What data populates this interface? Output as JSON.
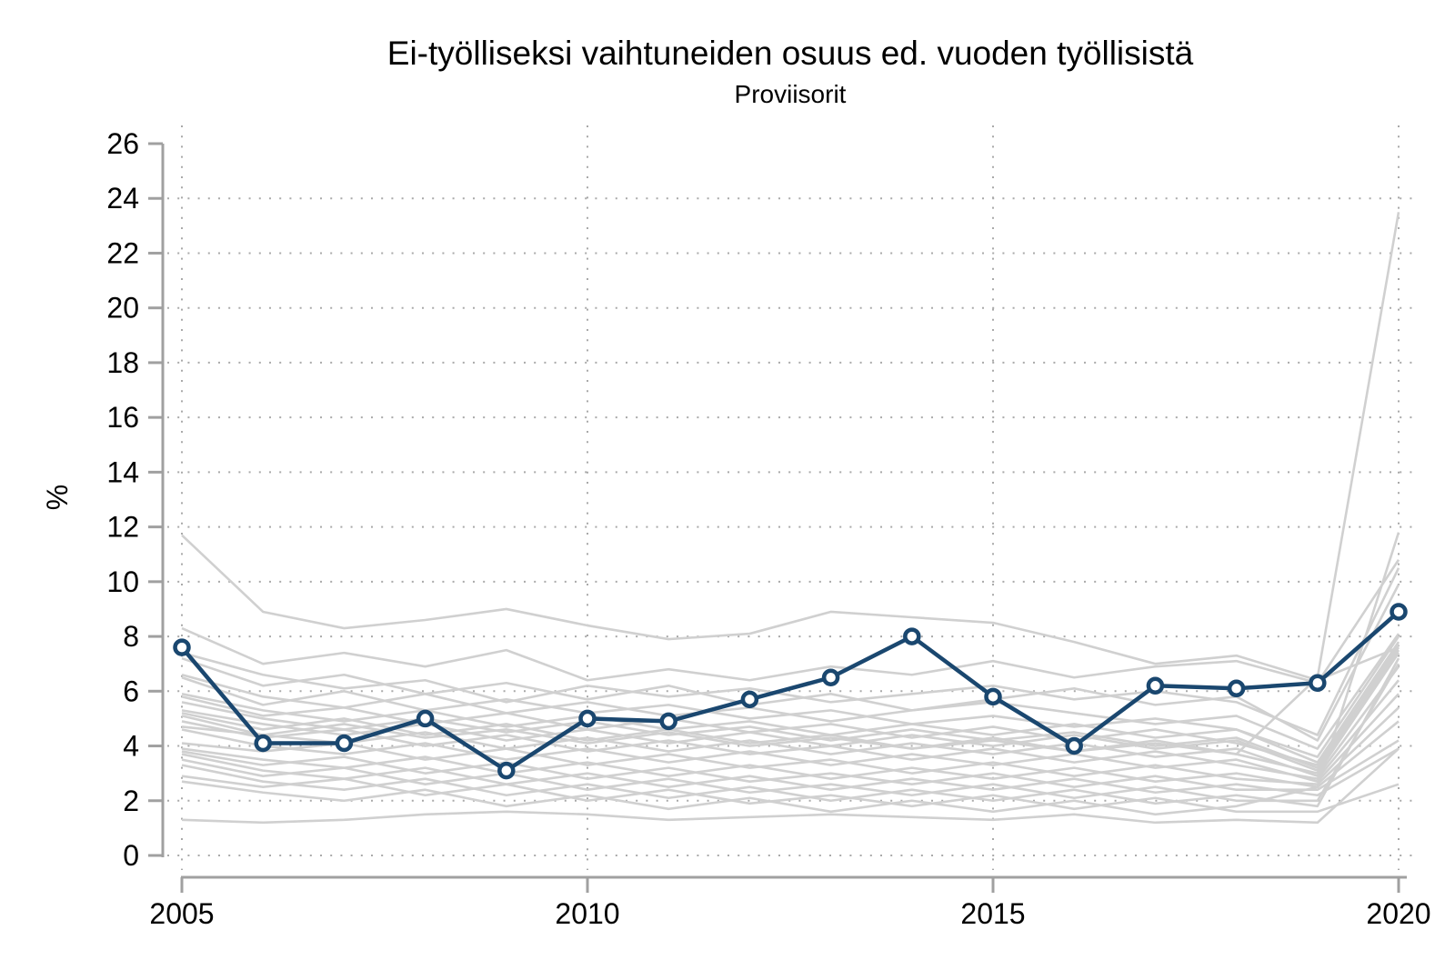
{
  "chart_data": {
    "type": "line",
    "title": "Ei-työlliseksi vaihtuneiden osuus ed. vuoden työllisistä",
    "subtitle": "Proviisorit",
    "ylabel": "%",
    "xlabel": "",
    "x": [
      2005,
      2006,
      2007,
      2008,
      2009,
      2010,
      2011,
      2012,
      2013,
      2014,
      2015,
      2016,
      2017,
      2018,
      2019,
      2020
    ],
    "x_tick_labels": [
      "2005",
      "2010",
      "2015",
      "2020"
    ],
    "x_tick_values": [
      2005,
      2010,
      2015,
      2020
    ],
    "y_tick_values": [
      0,
      2,
      4,
      6,
      8,
      10,
      12,
      14,
      16,
      18,
      20,
      22,
      24,
      26
    ],
    "ylim": [
      0,
      26
    ],
    "xlim": [
      2005,
      2020
    ],
    "grid": "dotted, horizontal at every y tick except 26, vertical at labeled years",
    "legend_position": "none",
    "highlight_series": {
      "name": "Proviisorit",
      "color": "#1a476f",
      "marker": "open-circle",
      "values": [
        7.6,
        4.1,
        4.1,
        5.0,
        3.1,
        5.0,
        4.9,
        5.7,
        6.5,
        8.0,
        5.8,
        4.0,
        6.2,
        6.1,
        6.3,
        8.9
      ]
    },
    "background_series_color": "#d0d0d0",
    "background_series": [
      {
        "values": [
          11.7,
          8.9,
          8.3,
          8.6,
          9.0,
          8.4,
          7.9,
          8.1,
          8.9,
          8.7,
          8.5,
          7.8,
          7.0,
          7.3,
          6.4,
          7.6
        ]
      },
      {
        "values": [
          8.3,
          7.0,
          7.4,
          6.9,
          7.5,
          6.4,
          6.8,
          6.4,
          6.9,
          6.6,
          7.1,
          6.5,
          6.9,
          7.1,
          6.3,
          10.8
        ]
      },
      {
        "values": [
          7.4,
          6.6,
          6.1,
          6.4,
          5.6,
          6.2,
          5.8,
          6.1,
          5.6,
          5.9,
          6.2,
          5.7,
          6.0,
          5.6,
          4.4,
          10.5
        ]
      },
      {
        "values": [
          7.2,
          6.2,
          6.6,
          5.9,
          6.3,
          5.7,
          6.2,
          5.5,
          5.9,
          5.3,
          5.7,
          6.1,
          5.5,
          5.8,
          4.2,
          9.9
        ]
      },
      {
        "values": [
          6.6,
          5.8,
          5.4,
          5.9,
          5.2,
          5.6,
          5.1,
          5.4,
          4.9,
          5.3,
          5.6,
          5.2,
          4.8,
          5.1,
          3.9,
          8.1
        ]
      },
      {
        "values": [
          6.5,
          5.5,
          6.0,
          5.3,
          5.7,
          5.2,
          5.5,
          5.0,
          5.3,
          4.8,
          5.1,
          4.7,
          5.0,
          4.6,
          3.6,
          8.0
        ]
      },
      {
        "values": [
          5.9,
          5.3,
          4.9,
          5.3,
          4.7,
          5.1,
          4.6,
          4.9,
          4.4,
          4.8,
          4.4,
          4.8,
          4.3,
          4.6,
          3.4,
          7.8
        ]
      },
      {
        "values": [
          5.8,
          5.1,
          5.4,
          4.8,
          5.2,
          4.6,
          5.0,
          4.5,
          4.8,
          4.3,
          4.7,
          4.2,
          4.6,
          4.1,
          3.3,
          7.6
        ]
      },
      {
        "values": [
          5.6,
          5.0,
          4.6,
          5.0,
          4.5,
          4.9,
          4.4,
          4.7,
          4.2,
          4.6,
          4.2,
          4.5,
          4.0,
          4.3,
          3.2,
          7.7
        ]
      },
      {
        "values": [
          5.3,
          4.8,
          4.4,
          4.8,
          4.2,
          4.6,
          4.1,
          4.5,
          4.0,
          4.4,
          4.0,
          4.4,
          3.9,
          4.2,
          3.1,
          7.5
        ]
      },
      {
        "values": [
          5.2,
          4.6,
          5.0,
          4.4,
          4.8,
          4.2,
          4.6,
          4.1,
          4.4,
          3.9,
          4.3,
          3.8,
          4.2,
          3.7,
          3.0,
          7.4
        ]
      },
      {
        "values": [
          5.1,
          4.4,
          4.1,
          4.5,
          3.9,
          4.3,
          3.8,
          4.2,
          3.7,
          4.1,
          3.7,
          4.1,
          3.6,
          3.9,
          2.9,
          6.9
        ]
      },
      {
        "values": [
          4.9,
          4.3,
          4.6,
          4.0,
          4.4,
          3.8,
          4.2,
          3.7,
          4.0,
          3.5,
          3.9,
          3.4,
          3.8,
          3.3,
          2.8,
          6.4
        ]
      },
      {
        "values": [
          4.6,
          4.0,
          3.7,
          4.1,
          3.5,
          3.9,
          3.4,
          3.8,
          3.3,
          3.7,
          3.3,
          3.7,
          3.2,
          3.5,
          2.7,
          5.9
        ]
      },
      {
        "values": [
          4.7,
          4.4,
          4.8,
          4.3,
          4.6,
          4.1,
          4.5,
          4.0,
          4.3,
          3.9,
          4.2,
          3.8,
          4.1,
          3.7,
          6.5,
          23.5
        ]
      },
      {
        "values": [
          4.1,
          3.8,
          4.1,
          3.5,
          3.9,
          3.3,
          3.7,
          3.2,
          3.5,
          3.0,
          3.4,
          2.9,
          3.3,
          2.8,
          2.6,
          5.4
        ]
      },
      {
        "values": [
          3.9,
          3.5,
          3.2,
          3.6,
          3.0,
          3.4,
          2.9,
          3.3,
          2.8,
          3.2,
          2.8,
          3.2,
          2.7,
          3.0,
          2.5,
          4.9
        ]
      },
      {
        "values": [
          3.8,
          3.3,
          3.6,
          3.0,
          3.4,
          2.8,
          3.2,
          2.7,
          3.0,
          2.6,
          3.0,
          2.5,
          2.9,
          2.4,
          2.4,
          4.2
        ]
      },
      {
        "values": [
          3.7,
          3.1,
          2.8,
          3.2,
          2.6,
          3.0,
          2.5,
          2.9,
          2.4,
          2.8,
          2.4,
          2.8,
          2.3,
          2.6,
          2.2,
          3.9
        ]
      },
      {
        "values": [
          3.5,
          2.9,
          3.2,
          2.6,
          3.0,
          2.4,
          2.8,
          2.3,
          2.6,
          2.2,
          2.6,
          2.1,
          2.5,
          2.0,
          2.0,
          7.0
        ]
      },
      {
        "values": [
          3.3,
          2.7,
          2.4,
          2.8,
          2.2,
          2.6,
          2.1,
          2.5,
          2.0,
          2.4,
          2.0,
          2.4,
          1.9,
          2.2,
          1.8,
          7.2
        ]
      },
      {
        "values": [
          2.9,
          2.5,
          2.8,
          2.2,
          2.6,
          2.0,
          2.4,
          1.9,
          2.2,
          1.8,
          2.2,
          1.7,
          2.1,
          1.6,
          1.6,
          2.6
        ]
      },
      {
        "values": [
          2.7,
          2.3,
          2.0,
          2.4,
          1.8,
          2.2,
          1.7,
          2.1,
          1.6,
          2.0,
          1.6,
          2.0,
          1.5,
          1.8,
          2.5,
          11.8
        ]
      },
      {
        "values": [
          1.3,
          1.2,
          1.3,
          1.5,
          1.6,
          1.5,
          1.3,
          1.4,
          1.5,
          1.4,
          1.3,
          1.5,
          1.2,
          1.3,
          1.2,
          3.9
        ]
      }
    ]
  },
  "colors": {
    "highlight": "#1a476f",
    "background_lines": "#d0d0d0",
    "axis": "#a0a0a0",
    "grid_dots": "#a9a9a9",
    "text": "#000000",
    "canvas": "#ffffff"
  }
}
